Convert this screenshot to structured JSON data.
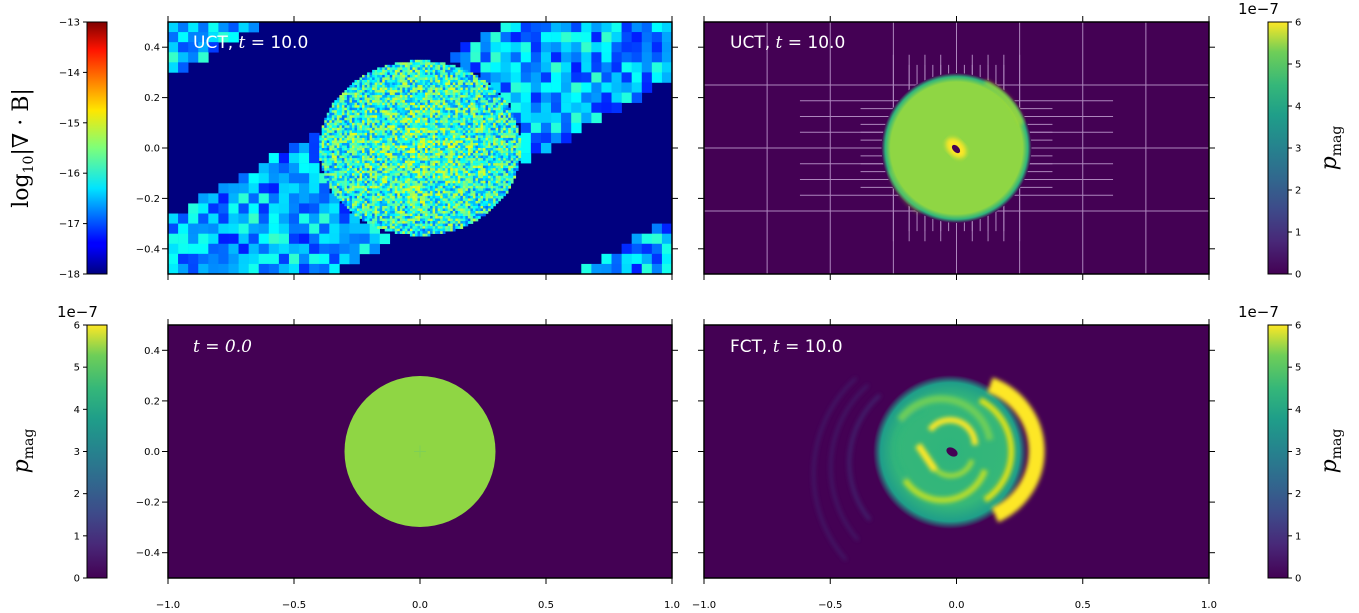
{
  "chart_data": [
    {
      "type": "heatmap",
      "panel": "top-left",
      "title": "UCT, t = 10.0",
      "title_parts": {
        "method": "UCT",
        "sep": ", ",
        "var": "t",
        "eq": " = ",
        "time": "10.0"
      },
      "xlim": [
        -1.0,
        1.0
      ],
      "ylim": [
        -0.5,
        0.5
      ],
      "yticks": [
        "0.4",
        "0.2",
        "0.0",
        "−0.2",
        "−0.4"
      ],
      "yticks_shown": true,
      "xticks_shown": false,
      "colormap": "jet",
      "features": "noisy divergence error in a diagonal band (tilted ~30°), background value -17.6; fine-grained central ellipse",
      "band": {
        "slope": 0.577,
        "half_width": 0.3
      }
    },
    {
      "type": "heatmap",
      "panel": "top-right",
      "title": "UCT, t = 10.0",
      "title_parts": {
        "method": "UCT",
        "sep": ", ",
        "var": "t",
        "eq": " = ",
        "time": "10.0"
      },
      "xlim": [
        -1.0,
        1.0
      ],
      "ylim": [
        -0.5,
        0.5
      ],
      "yticks_shown": false,
      "xticks_shown": false,
      "colormap": "viridis",
      "features": "magnetic loop of radius 0.3 with adaptive mesh grid overlay",
      "loop_radius": 0.3
    },
    {
      "type": "heatmap",
      "panel": "bottom-left",
      "title": "t = 0.0",
      "title_parts": {
        "method": "",
        "sep": "",
        "var": "t",
        "eq": " = ",
        "time": "0.0"
      },
      "xlim": [
        -1.0,
        1.0
      ],
      "ylim": [
        -0.5,
        0.5
      ],
      "yticks": [
        "0.4",
        "0.2",
        "0.0",
        "−0.2",
        "−0.4"
      ],
      "xticks": [
        "−1.0",
        "−0.5",
        "0.0",
        "0.5",
        "1.0"
      ],
      "yticks_shown": true,
      "xticks_shown": true,
      "colormap": "viridis",
      "features": "uniform disc of radius 0.3, value 4.8e-7",
      "loop_radius": 0.3,
      "loop_value": 4.8e-07
    },
    {
      "type": "heatmap",
      "panel": "bottom-right",
      "title": "FCT, t = 10.0",
      "title_parts": {
        "method": "FCT",
        "sep": ", ",
        "var": "t",
        "eq": " = ",
        "time": "10.0"
      },
      "xlim": [
        -1.0,
        1.0
      ],
      "ylim": [
        -0.5,
        0.5
      ],
      "xticks": [
        "−1.0",
        "−0.5",
        "0.0",
        "0.5",
        "1.0"
      ],
      "yticks_shown": false,
      "xticks_shown": true,
      "colormap": "viridis",
      "features": "distorted loop with spiral ripples, bright crescent on the right side",
      "loop_radius": 0.3
    }
  ],
  "colorbars": [
    {
      "position": "top-left",
      "label_main": "log",
      "label_sub": "10",
      "label_rest": "|∇ · B|",
      "colormap": "jet",
      "vmin": -18,
      "vmax": -13,
      "ticks": [
        "−13",
        "−14",
        "−15",
        "−16",
        "−17",
        "−18"
      ],
      "offset_text": ""
    },
    {
      "position": "top-right",
      "label_main": "p",
      "label_sub": "mag",
      "colormap": "viridis",
      "vmin": 0,
      "vmax": 6,
      "ticks": [
        "6",
        "5",
        "4",
        "3",
        "2",
        "1",
        "0"
      ],
      "offset_text": "1e−7"
    },
    {
      "position": "bottom-left",
      "label_main": "p",
      "label_sub": "mag",
      "colormap": "viridis",
      "vmin": 0,
      "vmax": 6,
      "ticks": [
        "6",
        "5",
        "4",
        "3",
        "2",
        "1",
        "0"
      ],
      "offset_text": "1e−7"
    },
    {
      "position": "bottom-right",
      "label_main": "p",
      "label_sub": "mag",
      "colormap": "viridis",
      "vmin": 0,
      "vmax": 6,
      "ticks": [
        "6",
        "5",
        "4",
        "3",
        "2",
        "1",
        "0"
      ],
      "offset_text": "1e−7"
    }
  ],
  "colors": {
    "viridis_bg": "#440154",
    "band_bg": "#00007f",
    "grid_overlay": "#c8a8d8",
    "title_text": "#ffffff"
  }
}
